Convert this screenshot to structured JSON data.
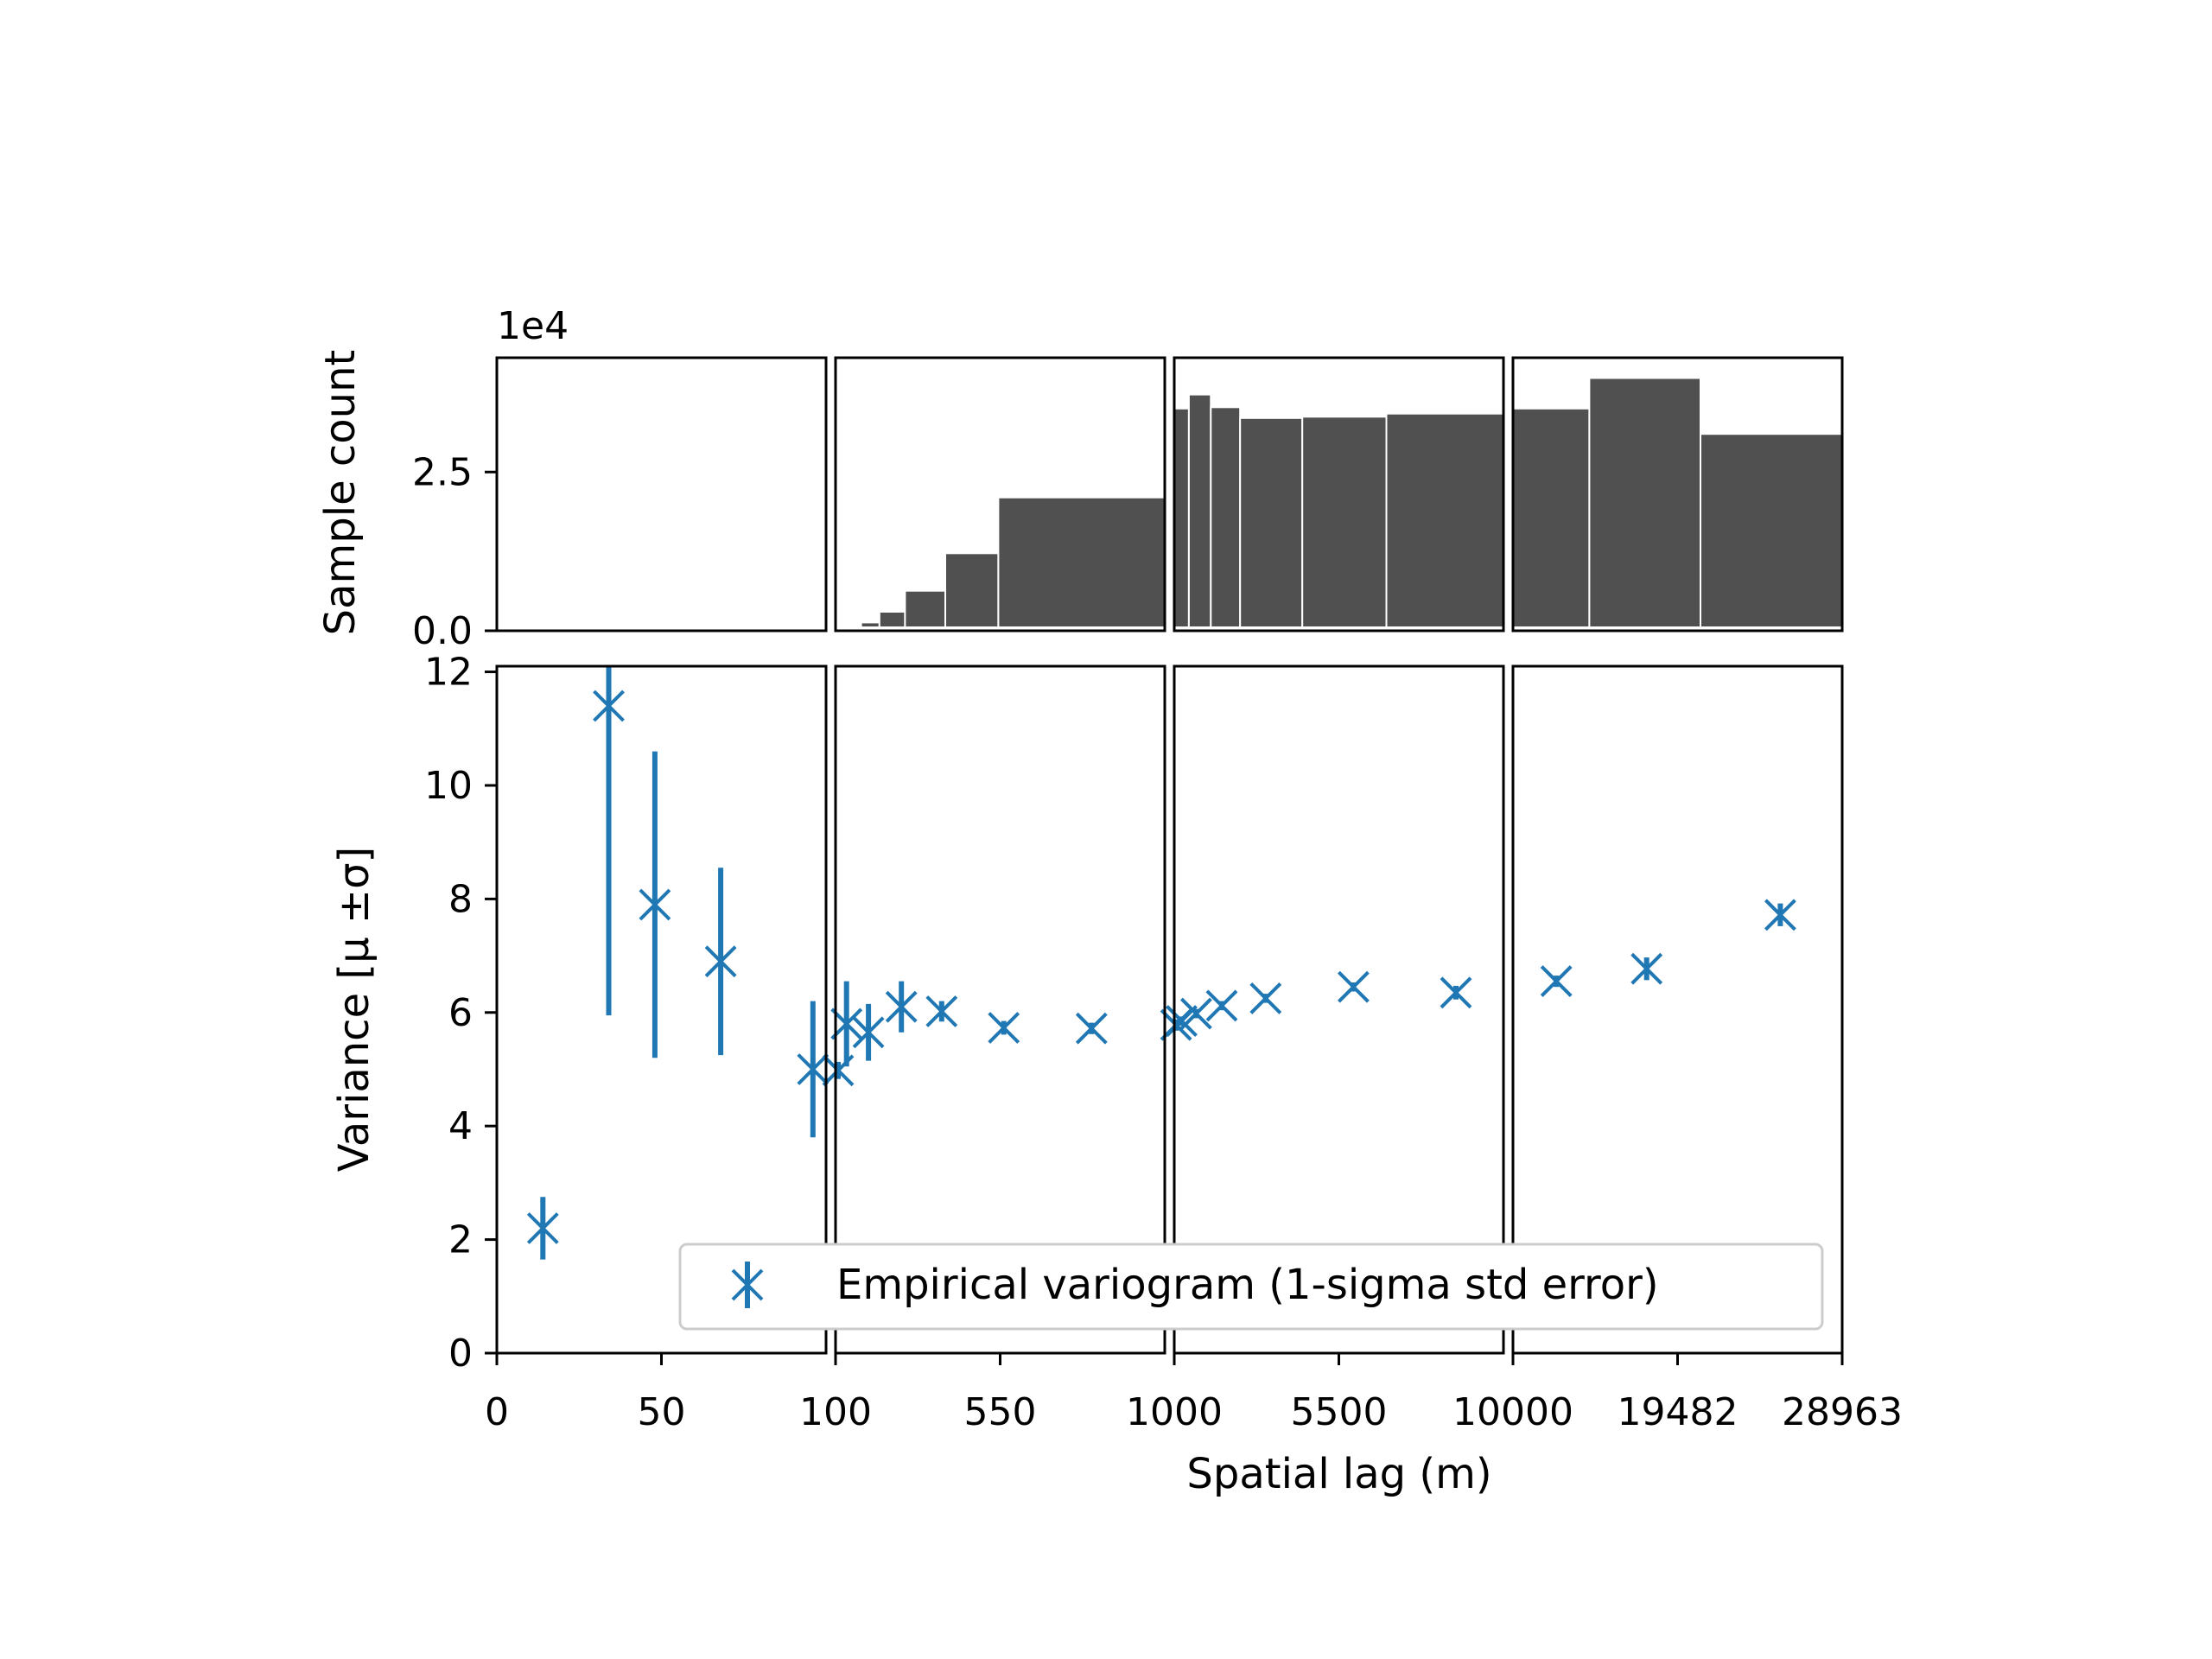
{
  "chart_data": {
    "type": "scatter",
    "multiplier_label": "1e4",
    "colors": {
      "marker": "#1f77b4",
      "bars": "#505050",
      "frame": "#000000",
      "legend_border": "#cccccc"
    },
    "xlabel": "Spatial lag (m)",
    "ylabel_top": "Sample count",
    "ylabel_bottom": "Variance [μ ±σ]",
    "top_ylim": [
      0,
      4.3
    ],
    "bottom_ylim": [
      0,
      12.1
    ],
    "top_yticks": [
      {
        "value": 0,
        "label": "0.0"
      },
      {
        "value": 2.5,
        "label": "2.5"
      }
    ],
    "bottom_yticks": [
      {
        "value": 0,
        "label": "0"
      },
      {
        "value": 2,
        "label": "2"
      },
      {
        "value": 4,
        "label": "4"
      },
      {
        "value": 6,
        "label": "6"
      },
      {
        "value": 8,
        "label": "8"
      },
      {
        "value": 10,
        "label": "10"
      },
      {
        "value": 12,
        "label": "12"
      }
    ],
    "xticks": [
      {
        "value": 0,
        "label": "0"
      },
      {
        "value": 50,
        "label": "50"
      },
      {
        "value": 100,
        "label": "100"
      },
      {
        "value": 550,
        "label": "550"
      },
      {
        "value": 1000,
        "label": "1000"
      },
      {
        "value": 5500,
        "label": "5500"
      },
      {
        "value": 10000,
        "label": "10000"
      },
      {
        "value": 19482,
        "label": "19482"
      },
      {
        "value": 28963,
        "label": "28963"
      }
    ],
    "segments": [
      {
        "xmin": 0,
        "xmax": 100
      },
      {
        "xmin": 100,
        "xmax": 1000
      },
      {
        "xmin": 1000,
        "xmax": 10000
      },
      {
        "xmin": 10000,
        "xmax": 28963
      }
    ],
    "histogram": {
      "unit_multiplier": 10000,
      "bins": [
        {
          "x0": 100,
          "x1": 130,
          "count": 0.03
        },
        {
          "x0": 130,
          "x1": 170,
          "count": 0.06
        },
        {
          "x0": 170,
          "x1": 220,
          "count": 0.13
        },
        {
          "x0": 220,
          "x1": 290,
          "count": 0.3
        },
        {
          "x0": 290,
          "x1": 400,
          "count": 0.63
        },
        {
          "x0": 400,
          "x1": 545,
          "count": 1.22
        },
        {
          "x0": 545,
          "x1": 1000,
          "count": 2.1
        },
        {
          "x0": 1000,
          "x1": 1400,
          "count": 3.5
        },
        {
          "x0": 1400,
          "x1": 2000,
          "count": 3.72
        },
        {
          "x0": 2000,
          "x1": 2800,
          "count": 3.52
        },
        {
          "x0": 2800,
          "x1": 4500,
          "count": 3.35
        },
        {
          "x0": 4500,
          "x1": 6800,
          "count": 3.37
        },
        {
          "x0": 6800,
          "x1": 10000,
          "count": 3.42
        },
        {
          "x0": 10000,
          "x1": 14400,
          "count": 3.5
        },
        {
          "x0": 14400,
          "x1": 20800,
          "count": 3.98
        },
        {
          "x0": 20800,
          "x1": 28963,
          "count": 3.1
        }
      ]
    },
    "series": [
      {
        "name": "Empirical variogram (1-sigma std error)",
        "points": [
          {
            "x": 14,
            "y": 2.2,
            "err": 0.55
          },
          {
            "x": 34,
            "y": 11.4,
            "err": 5.45
          },
          {
            "x": 48,
            "y": 7.9,
            "err": 2.7
          },
          {
            "x": 68,
            "y": 6.9,
            "err": 1.65
          },
          {
            "x": 96,
            "y": 5.0,
            "err": 1.2
          },
          {
            "x": 107,
            "y": 4.98,
            "err": 0.15
          },
          {
            "x": 130,
            "y": 5.8,
            "err": 0.75
          },
          {
            "x": 190,
            "y": 5.65,
            "err": 0.5
          },
          {
            "x": 280,
            "y": 6.1,
            "err": 0.45
          },
          {
            "x": 390,
            "y": 6.02,
            "err": 0.18
          },
          {
            "x": 560,
            "y": 5.73,
            "err": 0.12
          },
          {
            "x": 800,
            "y": 5.72,
            "err": 0.1
          },
          {
            "x": 1050,
            "y": 5.78,
            "err": 0.1
          },
          {
            "x": 1200,
            "y": 5.85,
            "err": 0.08
          },
          {
            "x": 1600,
            "y": 5.98,
            "err": 0.08
          },
          {
            "x": 2300,
            "y": 6.12,
            "err": 0.08
          },
          {
            "x": 3500,
            "y": 6.25,
            "err": 0.08
          },
          {
            "x": 5900,
            "y": 6.45,
            "err": 0.08
          },
          {
            "x": 8700,
            "y": 6.35,
            "err": 0.12
          },
          {
            "x": 12500,
            "y": 6.55,
            "err": 0.1
          },
          {
            "x": 17700,
            "y": 6.77,
            "err": 0.2
          },
          {
            "x": 25400,
            "y": 7.72,
            "err": 0.2
          }
        ]
      }
    ],
    "legend_placement": "lower right",
    "grid": false
  }
}
